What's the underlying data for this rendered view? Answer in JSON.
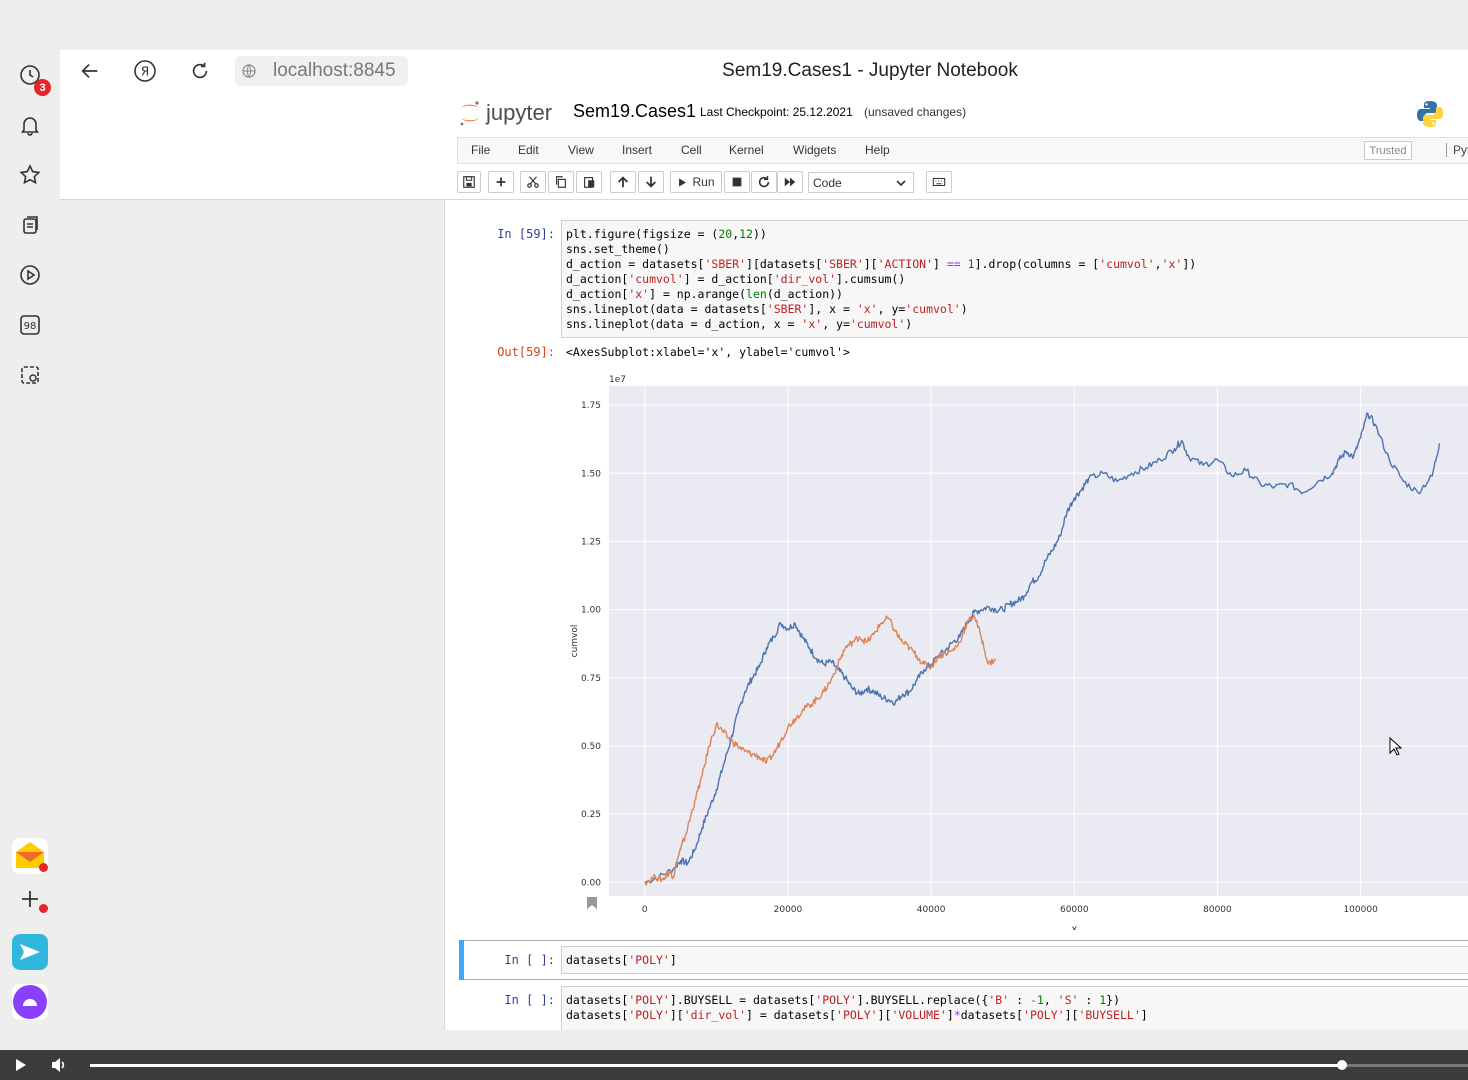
{
  "browser": {
    "url": "localhost:8845",
    "page_title": "Sem19.Cases1 - Jupyter Notebook",
    "notification_count": "3"
  },
  "notebook": {
    "logo_text": "jupyter",
    "name": "Sem19.Cases1",
    "checkpoint": "Last Checkpoint: 25.12.2021",
    "unsaved": "(unsaved changes)",
    "trusted": "Trusted",
    "kernel": "Pyt",
    "menu": [
      "File",
      "Edit",
      "View",
      "Insert",
      "Cell",
      "Kernel",
      "Widgets",
      "Help"
    ],
    "run_label": "Run",
    "cell_type": "Code"
  },
  "cells": {
    "c1_prompt": "In [59]:",
    "c1_out_prompt": "Out[59]:",
    "c1_output": "<AxesSubplot:xlabel='x', ylabel='cumvol'>",
    "c2_prompt": "In [ ]:",
    "c3_prompt": "In [ ]:"
  },
  "chart_data": {
    "type": "line",
    "xlabel": "x",
    "ylabel": "cumvol",
    "offset_label": "1e7",
    "xlim": [
      -5000,
      115000
    ],
    "ylim": [
      -0.05,
      1.82
    ],
    "y_scale_note": "1e7",
    "x_ticks": [
      0,
      20000,
      40000,
      60000,
      80000,
      100000
    ],
    "x_tick_labels": [
      "0",
      "20000",
      "40000",
      "60000",
      "80000",
      "100000"
    ],
    "y_ticks": [
      0.0,
      0.25,
      0.5,
      0.75,
      1.0,
      1.25,
      1.5,
      1.75
    ],
    "y_tick_labels": [
      "0.00",
      "0.25",
      "0.50",
      "0.75",
      "1.00",
      "1.25",
      "1.50",
      "1.75"
    ],
    "grid": true,
    "colors": {
      "series1": "#4c72b0",
      "series2": "#dd8452",
      "background": "#eaeaf2"
    },
    "series": [
      {
        "x": [
          0,
          2000,
          4000,
          5000,
          6000,
          7000,
          8000,
          9000,
          10000,
          11000,
          12000,
          13000,
          14000,
          15000,
          16000,
          17000,
          18000,
          19000,
          20000,
          21000,
          22000,
          23000,
          24000,
          25000,
          26000,
          27000,
          28000,
          29000,
          30000,
          31000,
          32000,
          33000,
          34000,
          35000,
          36000,
          37000,
          38000,
          39000,
          40000,
          41000,
          42000,
          43000,
          44000,
          45000,
          46000,
          47000,
          48000,
          49000,
          50000,
          51000,
          52000,
          53000,
          54000,
          55000,
          56000,
          57000,
          58000,
          59000,
          60000,
          61000,
          62000,
          64000,
          66000,
          68000,
          70000,
          72000,
          74000,
          75000,
          76000,
          78000,
          80000,
          82000,
          84000,
          86000,
          88000,
          90000,
          92000,
          94000,
          96000,
          97000,
          98000,
          99000,
          100000,
          101000,
          102000,
          104000,
          106000,
          108000,
          110000,
          111000
        ],
        "y": [
          0.0,
          0.02,
          0.05,
          0.08,
          0.07,
          0.12,
          0.2,
          0.27,
          0.34,
          0.43,
          0.52,
          0.62,
          0.7,
          0.75,
          0.79,
          0.86,
          0.9,
          0.95,
          0.93,
          0.95,
          0.9,
          0.86,
          0.82,
          0.8,
          0.81,
          0.78,
          0.75,
          0.71,
          0.69,
          0.71,
          0.7,
          0.68,
          0.67,
          0.66,
          0.69,
          0.7,
          0.74,
          0.78,
          0.8,
          0.83,
          0.85,
          0.88,
          0.9,
          0.95,
          0.99,
          1.0,
          1.01,
          1.0,
          1.0,
          1.02,
          1.03,
          1.05,
          1.1,
          1.12,
          1.18,
          1.22,
          1.27,
          1.36,
          1.41,
          1.44,
          1.48,
          1.5,
          1.47,
          1.5,
          1.52,
          1.55,
          1.59,
          1.62,
          1.56,
          1.53,
          1.55,
          1.49,
          1.51,
          1.46,
          1.45,
          1.46,
          1.43,
          1.47,
          1.5,
          1.55,
          1.58,
          1.56,
          1.63,
          1.72,
          1.68,
          1.55,
          1.47,
          1.43,
          1.49,
          1.61
        ]
      },
      {
        "x": [
          0,
          1500,
          2500,
          3500,
          4000,
          4500,
          5000,
          6000,
          7000,
          8000,
          9000,
          10000,
          11000,
          12000,
          13000,
          14000,
          15000,
          16000,
          17000,
          18000,
          19000,
          20000,
          21000,
          22000,
          23000,
          24000,
          25000,
          26000,
          27000,
          28000,
          29000,
          30000,
          31000,
          32000,
          33000,
          34000,
          35000,
          36000,
          37000,
          38000,
          39000,
          40000,
          41000,
          42000,
          43000,
          44000,
          45000,
          46000,
          47000,
          48000,
          49000
        ],
        "y": [
          0.0,
          0.02,
          0.01,
          0.04,
          0.02,
          0.08,
          0.12,
          0.2,
          0.3,
          0.39,
          0.5,
          0.58,
          0.55,
          0.52,
          0.5,
          0.48,
          0.47,
          0.46,
          0.44,
          0.47,
          0.52,
          0.57,
          0.6,
          0.63,
          0.65,
          0.67,
          0.7,
          0.74,
          0.8,
          0.86,
          0.88,
          0.9,
          0.88,
          0.91,
          0.95,
          0.97,
          0.92,
          0.88,
          0.86,
          0.83,
          0.8,
          0.79,
          0.83,
          0.84,
          0.85,
          0.88,
          0.95,
          0.98,
          0.9,
          0.8,
          0.82
        ]
      }
    ]
  }
}
